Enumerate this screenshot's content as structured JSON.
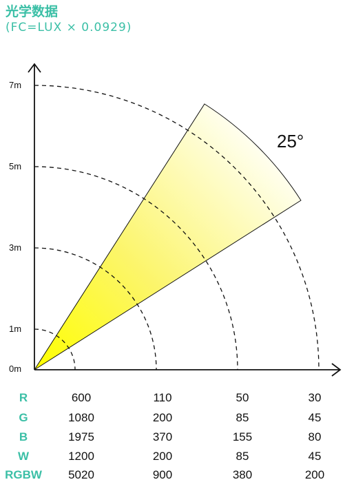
{
  "title": "光学数据",
  "subtitle": "(FC=LUX × 0.0929)",
  "beam_angle": "25°",
  "distance_labels": [
    "0m",
    "1m",
    "3m",
    "5m",
    "7m"
  ],
  "table": {
    "rows": [
      {
        "label": "R",
        "values": [
          "600",
          "110",
          "50",
          "30"
        ]
      },
      {
        "label": "G",
        "values": [
          "1080",
          "200",
          "85",
          "45"
        ]
      },
      {
        "label": "B",
        "values": [
          "1975",
          "370",
          "155",
          "80"
        ]
      },
      {
        "label": "W",
        "values": [
          "1200",
          "200",
          "85",
          "45"
        ]
      },
      {
        "label": "RGBW",
        "values": [
          "5020",
          "900",
          "380",
          "200"
        ]
      }
    ]
  },
  "colors": {
    "accent": "#3bbfa6",
    "beam_start": "#ffff00",
    "beam_end": "#fffff0",
    "line": "#111111"
  }
}
